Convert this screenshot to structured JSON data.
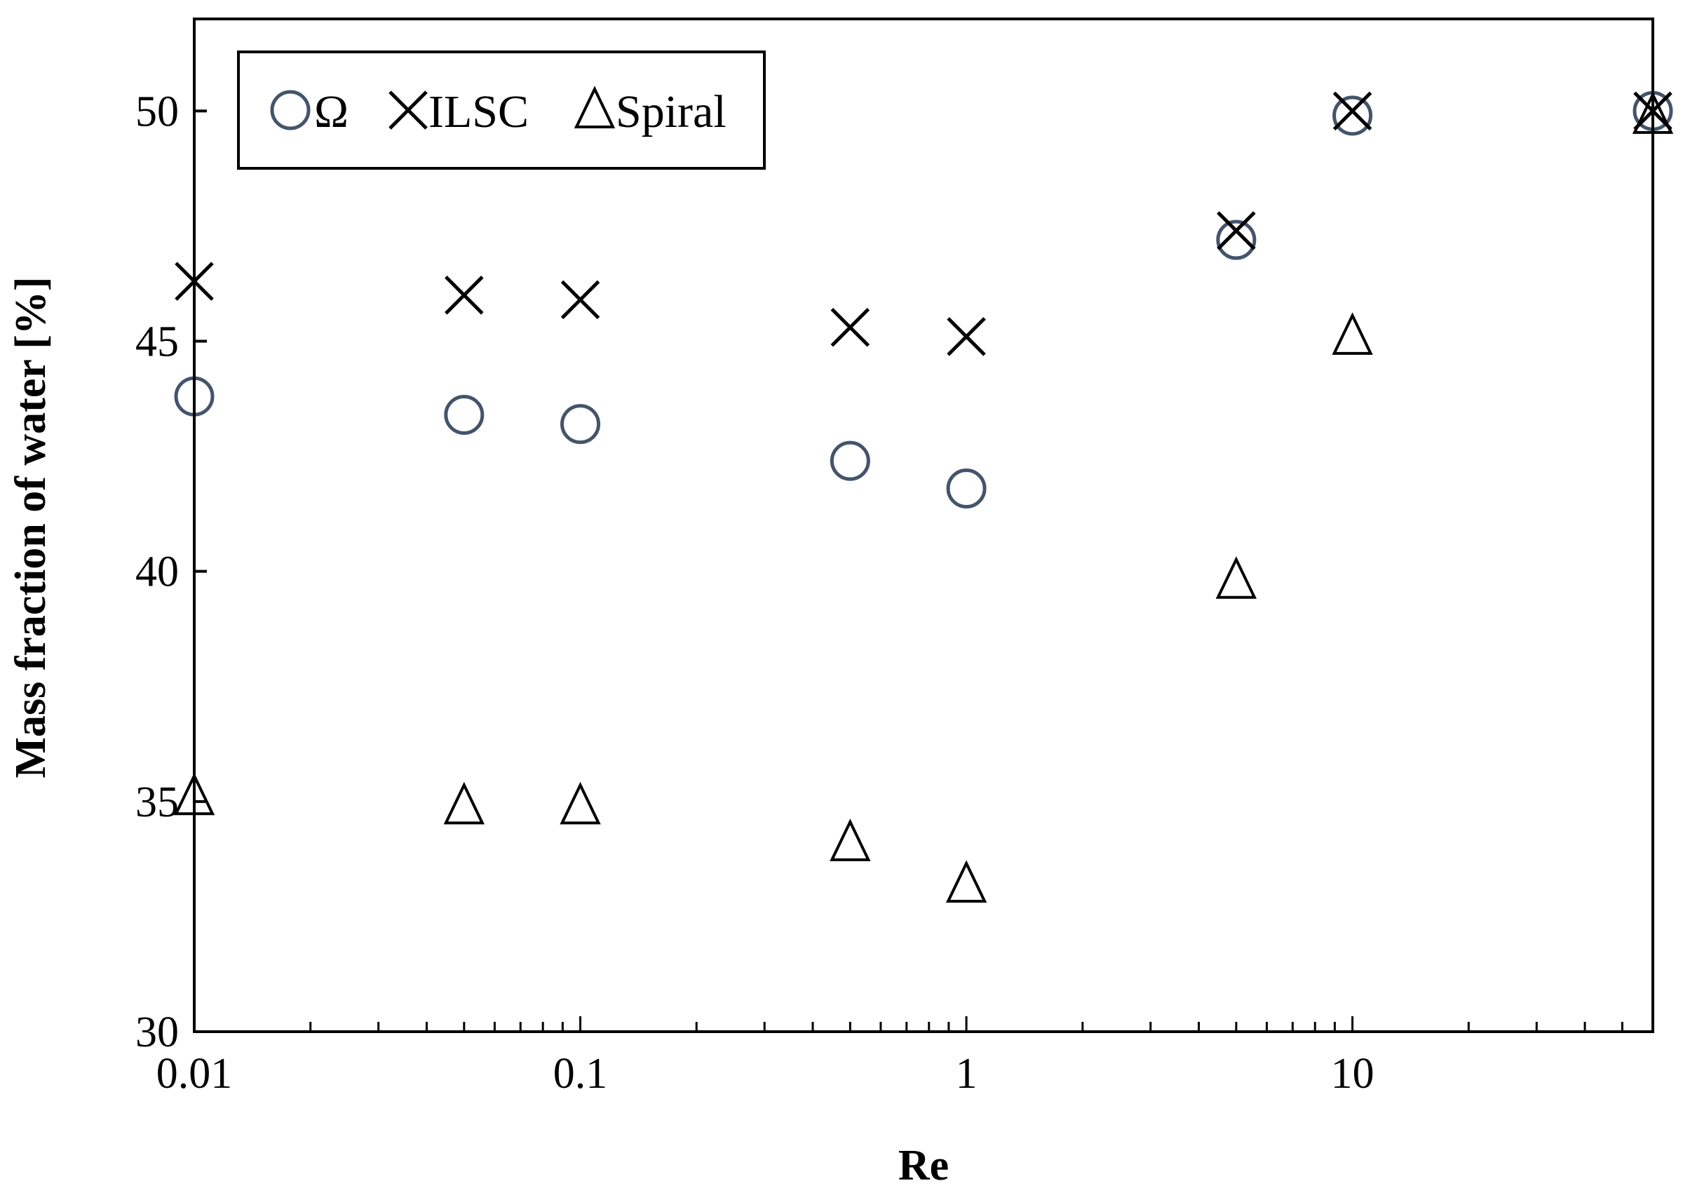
{
  "chart_data": {
    "type": "scatter",
    "title": "",
    "xlabel": "Re",
    "ylabel": "Mass fraction of water [%]",
    "xscale": "log",
    "xlim": [
      0.01,
      60
    ],
    "ylim": [
      30,
      52
    ],
    "x_tick_labels": [
      "0.01",
      "0.1",
      "1",
      "10"
    ],
    "x_tick_values": [
      0.01,
      0.1,
      1,
      10
    ],
    "y_tick_labels": [
      "30",
      "35",
      "40",
      "45",
      "50"
    ],
    "y_tick_values": [
      30,
      35,
      40,
      45,
      50
    ],
    "grid": false,
    "legend_position": "top-left",
    "series": [
      {
        "name": "Ω",
        "marker": "circle",
        "color": "#44546a",
        "x": [
          0.01,
          0.05,
          0.1,
          0.5,
          1,
          5,
          10,
          60
        ],
        "y": [
          43.8,
          43.4,
          43.2,
          42.4,
          41.8,
          47.2,
          49.9,
          50.0
        ]
      },
      {
        "name": "ILSC",
        "marker": "x",
        "color": "#000000",
        "x": [
          0.01,
          0.05,
          0.1,
          0.5,
          1,
          5,
          10,
          60
        ],
        "y": [
          46.3,
          46.0,
          45.9,
          45.3,
          45.1,
          47.4,
          50.0,
          50.0
        ]
      },
      {
        "name": "Spiral",
        "marker": "triangle",
        "color": "#000000",
        "x": [
          0.01,
          0.05,
          0.1,
          0.5,
          1,
          5,
          10,
          60
        ],
        "y": [
          35.1,
          34.9,
          34.9,
          34.1,
          33.2,
          39.8,
          45.1,
          49.9
        ]
      }
    ]
  }
}
